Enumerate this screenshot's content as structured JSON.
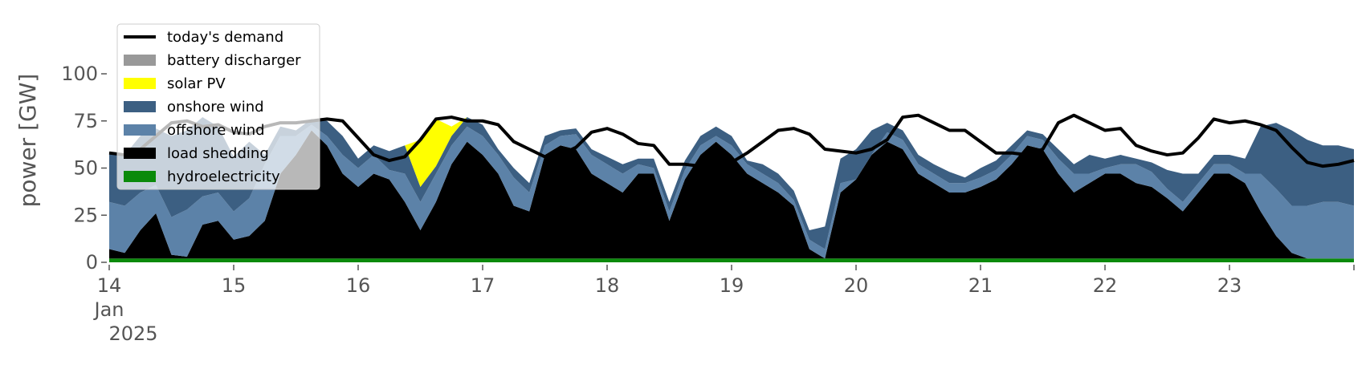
{
  "chart_data": {
    "type": "area",
    "stacked": true,
    "title": "",
    "xlabel": "",
    "ylabel": "power [GW]",
    "ylim": [
      0,
      120
    ],
    "xlim": [
      0,
      240
    ],
    "x_unit": "hours since 14 Jan 2025 00:00",
    "grid": false,
    "legend_placement": "upper-left",
    "y_ticks": [
      {
        "value": 0,
        "label": "0"
      },
      {
        "value": 25,
        "label": "25"
      },
      {
        "value": 50,
        "label": "50"
      },
      {
        "value": 75,
        "label": "75"
      },
      {
        "value": 100,
        "label": "100"
      }
    ],
    "x_ticks": [
      {
        "value": 0,
        "label": "14",
        "sub1": "Jan",
        "sub2": "2025"
      },
      {
        "value": 24,
        "label": "15"
      },
      {
        "value": 48,
        "label": "16"
      },
      {
        "value": 72,
        "label": "17"
      },
      {
        "value": 96,
        "label": "18"
      },
      {
        "value": 120,
        "label": "19"
      },
      {
        "value": 144,
        "label": "20"
      },
      {
        "value": 168,
        "label": "21"
      },
      {
        "value": 192,
        "label": "22"
      },
      {
        "value": 216,
        "label": "23"
      }
    ],
    "legend": [
      {
        "label": "today's demand",
        "kind": "line",
        "color": "#000000"
      },
      {
        "label": "battery discharger",
        "kind": "patch",
        "color": "#999999"
      },
      {
        "label": "solar PV",
        "kind": "patch",
        "color": "#ffff00"
      },
      {
        "label": "onshore wind",
        "kind": "patch",
        "color": "#3c5f82"
      },
      {
        "label": "offshore wind",
        "kind": "patch",
        "color": "#5c82a8"
      },
      {
        "label": "load shedding",
        "kind": "patch",
        "color": "#000000"
      },
      {
        "label": "hydroelectricity",
        "kind": "patch",
        "color": "#0a8a0a"
      }
    ],
    "x": [
      0,
      3,
      6,
      9,
      12,
      15,
      18,
      21,
      24,
      27,
      30,
      33,
      36,
      39,
      42,
      45,
      48,
      51,
      54,
      57,
      60,
      63,
      66,
      69,
      72,
      75,
      78,
      81,
      84,
      87,
      90,
      93,
      96,
      99,
      102,
      105,
      108,
      111,
      114,
      117,
      120,
      123,
      126,
      129,
      132,
      135,
      138,
      141,
      144,
      147,
      150,
      153,
      156,
      159,
      162,
      165,
      168,
      171,
      174,
      177,
      180,
      183,
      186,
      189,
      192,
      195,
      198,
      201,
      204,
      207,
      210,
      213,
      216,
      219,
      222,
      225,
      228,
      231,
      234,
      237,
      240
    ],
    "series": [
      {
        "name": "hydroelectricity",
        "color": "#0a8a0a",
        "values": [
          2,
          2,
          2,
          2,
          2,
          2,
          2,
          2,
          2,
          2,
          2,
          2,
          2,
          2,
          2,
          2,
          2,
          2,
          2,
          2,
          2,
          2,
          2,
          2,
          2,
          2,
          2,
          2,
          2,
          2,
          2,
          2,
          2,
          2,
          2,
          2,
          2,
          2,
          2,
          2,
          2,
          2,
          2,
          2,
          2,
          2,
          2,
          2,
          2,
          2,
          2,
          2,
          2,
          2,
          2,
          2,
          2,
          2,
          2,
          2,
          2,
          2,
          2,
          2,
          2,
          2,
          2,
          2,
          2,
          2,
          2,
          2,
          2,
          2,
          2,
          2,
          2,
          2,
          2,
          2,
          2
        ]
      },
      {
        "name": "load shedding",
        "color": "#000000",
        "values": [
          5,
          3,
          15,
          24,
          2,
          1,
          18,
          20,
          10,
          12,
          20,
          45,
          55,
          68,
          60,
          45,
          38,
          45,
          42,
          30,
          15,
          30,
          50,
          62,
          55,
          45,
          28,
          25,
          55,
          60,
          58,
          45,
          40,
          35,
          45,
          45,
          20,
          42,
          55,
          62,
          55,
          45,
          40,
          35,
          28,
          5,
          0,
          35,
          42,
          55,
          62,
          58,
          45,
          40,
          35,
          35,
          38,
          42,
          50,
          60,
          58,
          45,
          35,
          40,
          45,
          45,
          40,
          38,
          32,
          25,
          35,
          45,
          45,
          40,
          25,
          12,
          3,
          0,
          0,
          0,
          0
        ]
      },
      {
        "name": "offshore wind",
        "color": "#5c82a8",
        "values": [
          25,
          25,
          20,
          15,
          20,
          25,
          15,
          15,
          15,
          20,
          30,
          20,
          10,
          3,
          5,
          10,
          10,
          10,
          5,
          15,
          15,
          15,
          10,
          8,
          10,
          10,
          15,
          10,
          5,
          5,
          8,
          10,
          10,
          10,
          5,
          3,
          5,
          5,
          5,
          3,
          5,
          5,
          5,
          5,
          3,
          5,
          5,
          5,
          0,
          0,
          5,
          5,
          5,
          5,
          5,
          5,
          5,
          5,
          5,
          5,
          5,
          8,
          10,
          5,
          3,
          5,
          10,
          8,
          5,
          5,
          5,
          5,
          5,
          5,
          20,
          25,
          25,
          28,
          30,
          30,
          28
        ]
      },
      {
        "name": "onshore wind",
        "color": "#3c5f82",
        "values": [
          26,
          27,
          30,
          30,
          43,
          42,
          42,
          35,
          29,
          30,
          5,
          5,
          3,
          3,
          8,
          10,
          5,
          5,
          10,
          15,
          8,
          4,
          5,
          5,
          6,
          3,
          5,
          5,
          5,
          3,
          3,
          3,
          4,
          5,
          3,
          5,
          5,
          5,
          5,
          5,
          5,
          2,
          5,
          5,
          5,
          5,
          12,
          13,
          16,
          13,
          5,
          5,
          5,
          5,
          6,
          3,
          5,
          5,
          5,
          3,
          3,
          5,
          5,
          10,
          5,
          5,
          3,
          5,
          10,
          15,
          5,
          5,
          5,
          8,
          25,
          35,
          40,
          35,
          30,
          30,
          30
        ]
      },
      {
        "name": "battery discharger",
        "color": "#999999",
        "values": [
          0,
          0,
          0,
          0,
          0,
          0,
          0,
          0,
          0,
          0,
          0,
          0,
          0,
          0,
          0,
          0,
          0,
          0,
          0,
          0,
          0,
          0,
          0,
          0,
          0,
          0,
          0,
          0,
          0,
          0,
          0,
          0,
          0,
          0,
          0,
          0,
          0,
          0,
          0,
          0,
          0,
          0,
          0,
          0,
          0,
          0,
          0,
          0,
          0,
          0,
          0,
          0,
          0,
          0,
          0,
          0,
          0,
          0,
          0,
          0,
          0,
          0,
          0,
          0,
          0,
          0,
          0,
          0,
          0,
          0,
          0,
          0,
          0,
          0,
          0,
          0,
          0,
          0,
          0,
          0,
          0
        ]
      },
      {
        "name": "solar PV",
        "color": "#ffff00",
        "values": [
          0,
          0,
          0,
          0,
          0,
          0,
          0,
          0,
          0,
          0,
          0,
          0,
          0,
          0,
          0,
          0,
          0,
          0,
          0,
          0,
          25,
          25,
          5,
          0,
          0,
          0,
          0,
          0,
          0,
          0,
          0,
          0,
          0,
          0,
          0,
          0,
          0,
          0,
          0,
          0,
          0,
          0,
          0,
          0,
          0,
          0,
          0,
          0,
          0,
          0,
          0,
          0,
          0,
          0,
          0,
          0,
          0,
          0,
          0,
          0,
          0,
          0,
          0,
          0,
          0,
          0,
          0,
          0,
          0,
          0,
          0,
          0,
          0,
          0,
          0,
          0,
          0,
          0,
          0,
          0,
          0
        ]
      },
      {
        "name": "today's demand",
        "color": "#000000",
        "kind": "line",
        "values": [
          58,
          57,
          60,
          67,
          74,
          75,
          72,
          73,
          69,
          68,
          72,
          74,
          74,
          75,
          76,
          75,
          66,
          57,
          54,
          56,
          65,
          76,
          77,
          75,
          75,
          73,
          64,
          60,
          56,
          57,
          61,
          69,
          71,
          68,
          63,
          62,
          52,
          52,
          51,
          51,
          53,
          58,
          64,
          70,
          71,
          68,
          60,
          59,
          58,
          60,
          65,
          77,
          78,
          74,
          70,
          70,
          64,
          58,
          58,
          57,
          60,
          74,
          78,
          74,
          70,
          71,
          62,
          59,
          57,
          58,
          66,
          76,
          74,
          75,
          73,
          70,
          61,
          53,
          51,
          52,
          54
        ]
      }
    ]
  }
}
